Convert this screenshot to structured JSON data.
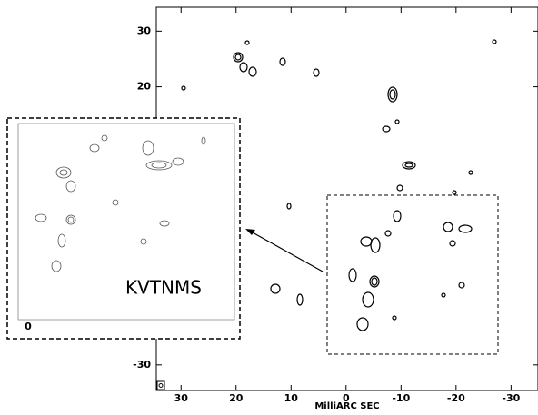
{
  "chart_data": {
    "type": "contour",
    "xlabel": "MilliARC SEC",
    "xlim": [
      34.5,
      -34.9
    ],
    "ylim": [
      -34.6,
      34.3
    ],
    "xticks": [
      30,
      20,
      10,
      0,
      -10,
      -20,
      -30
    ],
    "yticks": [
      30,
      20,
      -30
    ],
    "annotation": "KVTNMS",
    "inset_tick": "0"
  }
}
